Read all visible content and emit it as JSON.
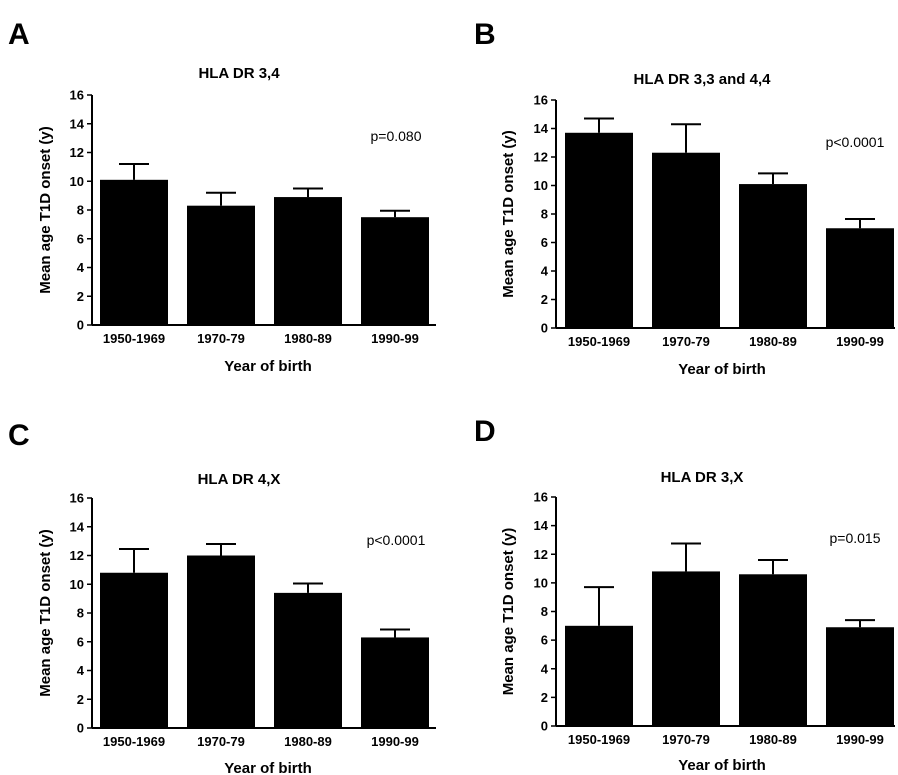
{
  "chart_data": [
    {
      "panel": "A",
      "type": "bar",
      "title": "HLA DR 3,4",
      "xlabel": "Year of birth",
      "ylabel": "Mean age T1D onset (y)",
      "categories": [
        "1950-1969",
        "1970-79",
        "1980-89",
        "1990-99"
      ],
      "values": [
        10.1,
        8.3,
        8.9,
        7.5
      ],
      "errors": [
        1.1,
        0.9,
        0.6,
        0.45
      ],
      "ylim": [
        0,
        16
      ],
      "yticks": [
        0,
        2,
        4,
        6,
        8,
        10,
        12,
        14,
        16
      ],
      "annotation": "p=0.080",
      "color": "#000000"
    },
    {
      "panel": "B",
      "type": "bar",
      "title": "HLA DR 3,3 and 4,4",
      "xlabel": "Year of birth",
      "ylabel": "Mean age T1D onset (y)",
      "categories": [
        "1950-1969",
        "1970-79",
        "1980-89",
        "1990-99"
      ],
      "values": [
        13.7,
        12.3,
        10.1,
        7.0
      ],
      "errors": [
        1.0,
        2.0,
        0.75,
        0.65
      ],
      "ylim": [
        0,
        16
      ],
      "yticks": [
        0,
        2,
        4,
        6,
        8,
        10,
        12,
        14,
        16
      ],
      "annotation": "p<0.0001",
      "color": "#000000"
    },
    {
      "panel": "C",
      "type": "bar",
      "title": "HLA DR 4,X",
      "xlabel": "Year of birth",
      "ylabel": "Mean age T1D onset (y)",
      "categories": [
        "1950-1969",
        "1970-79",
        "1980-89",
        "1990-99"
      ],
      "values": [
        10.8,
        12.0,
        9.4,
        6.3
      ],
      "errors": [
        1.65,
        0.8,
        0.65,
        0.55
      ],
      "ylim": [
        0,
        16
      ],
      "yticks": [
        0,
        2,
        4,
        6,
        8,
        10,
        12,
        14,
        16
      ],
      "annotation": "p<0.0001",
      "color": "#000000"
    },
    {
      "panel": "D",
      "type": "bar",
      "title": "HLA DR 3,X",
      "xlabel": "Year of birth",
      "ylabel": "Mean age T1D onset (y)",
      "categories": [
        "1950-1969",
        "1970-79",
        "1980-89",
        "1990-99"
      ],
      "values": [
        7.0,
        10.8,
        10.6,
        6.9
      ],
      "errors": [
        2.7,
        1.95,
        1.0,
        0.5
      ],
      "ylim": [
        0,
        16
      ],
      "yticks": [
        0,
        2,
        4,
        6,
        8,
        10,
        12,
        14,
        16
      ],
      "annotation": "p=0.015",
      "color": "#000000"
    }
  ]
}
